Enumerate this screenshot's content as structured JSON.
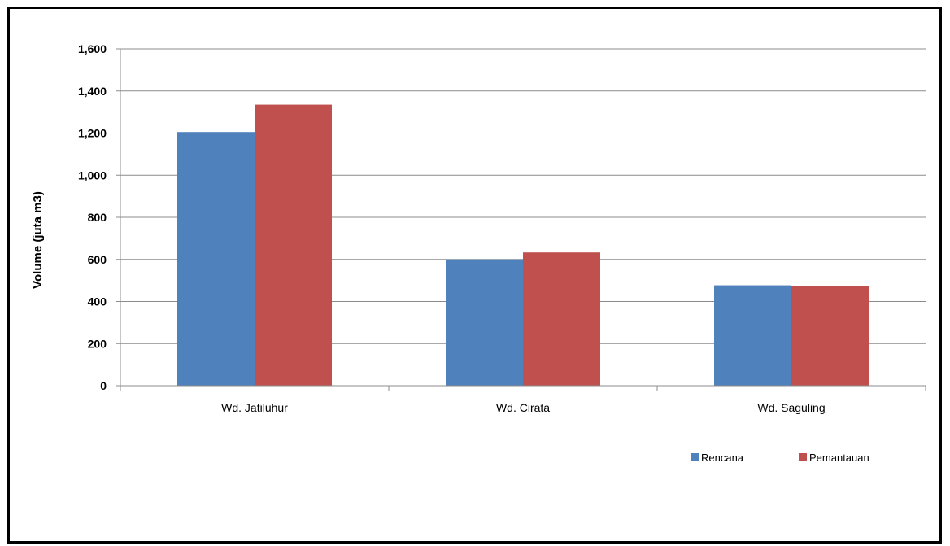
{
  "chart_data": {
    "type": "bar",
    "title": "",
    "xlabel": "",
    "ylabel": "Volume (juta m3)",
    "categories": [
      "Wd. Jatiluhur",
      "Wd. Cirata",
      "Wd. Saguling"
    ],
    "series": [
      {
        "name": "Rencana",
        "color": "#4F81BD",
        "values": [
          1205,
          600,
          477
        ]
      },
      {
        "name": "Pemantauan",
        "color": "#C0504D",
        "values": [
          1335,
          633,
          472
        ]
      }
    ],
    "ylim": [
      0,
      1600
    ],
    "yticks": [
      0,
      200,
      400,
      600,
      800,
      1000,
      1200,
      1400,
      1600
    ],
    "ytick_labels": [
      "0",
      "200",
      "400",
      "600",
      "800",
      "1,000",
      "1,200",
      "1,400",
      "1,600"
    ],
    "grid": true,
    "legend_position": "bottom-right"
  }
}
